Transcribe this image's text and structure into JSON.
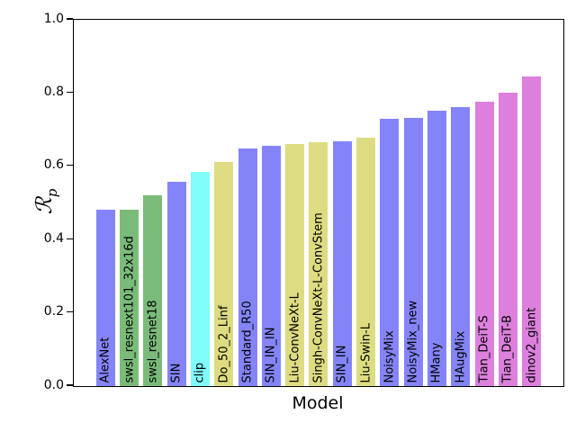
{
  "chart_data": {
    "type": "bar",
    "title": "",
    "xlabel": "Model",
    "ylabel": "ℛ_p",
    "ylabel_main": "ℛ",
    "ylabel_sub": "p",
    "ylim": [
      0.0,
      1.0
    ],
    "yticks": [
      "0.0",
      "0.2",
      "0.4",
      "0.6",
      "0.8",
      "1.0"
    ],
    "grid": false,
    "legend": "none",
    "bar_label_placement": "rotated-90-inside-bar-bottom",
    "categories": [
      "AlexNet",
      "swsl_resnext101_32x16d",
      "swsl_resnet18",
      "SIN",
      "clip",
      "Do_50_2_Linf",
      "Standard_R50",
      "SIN_IN_IN",
      "Liu-ConvNeXt-L",
      "Singh-ConvNeXt-L-ConvStem",
      "SIN_IN",
      "Liu-Swin-L",
      "NoisyMix",
      "NoisyMix_new",
      "HMany",
      "HAugMix",
      "Tian_DeiT-S",
      "Tian_DeiT-B",
      "dinov2_giant"
    ],
    "values": [
      0.481,
      0.481,
      0.52,
      0.559,
      0.584,
      0.612,
      0.648,
      0.656,
      0.662,
      0.666,
      0.669,
      0.678,
      0.729,
      0.733,
      0.752,
      0.762,
      0.776,
      0.8,
      0.846
    ],
    "bar_colors": [
      "#8484f8",
      "#7abb7a",
      "#7abb7a",
      "#8484f8",
      "#80fcfc",
      "#dddc82",
      "#8484f8",
      "#8484f8",
      "#dddc82",
      "#dddc82",
      "#8484f8",
      "#dddc82",
      "#8484f8",
      "#8484f8",
      "#8484f8",
      "#8484f8",
      "#dd80dd",
      "#dd80dd",
      "#dd80dd"
    ],
    "palette": {
      "blue": "#8484f8",
      "green": "#7abb7a",
      "cyan": "#80fcfc",
      "khaki": "#dddc82",
      "pink": "#dd80dd"
    }
  }
}
